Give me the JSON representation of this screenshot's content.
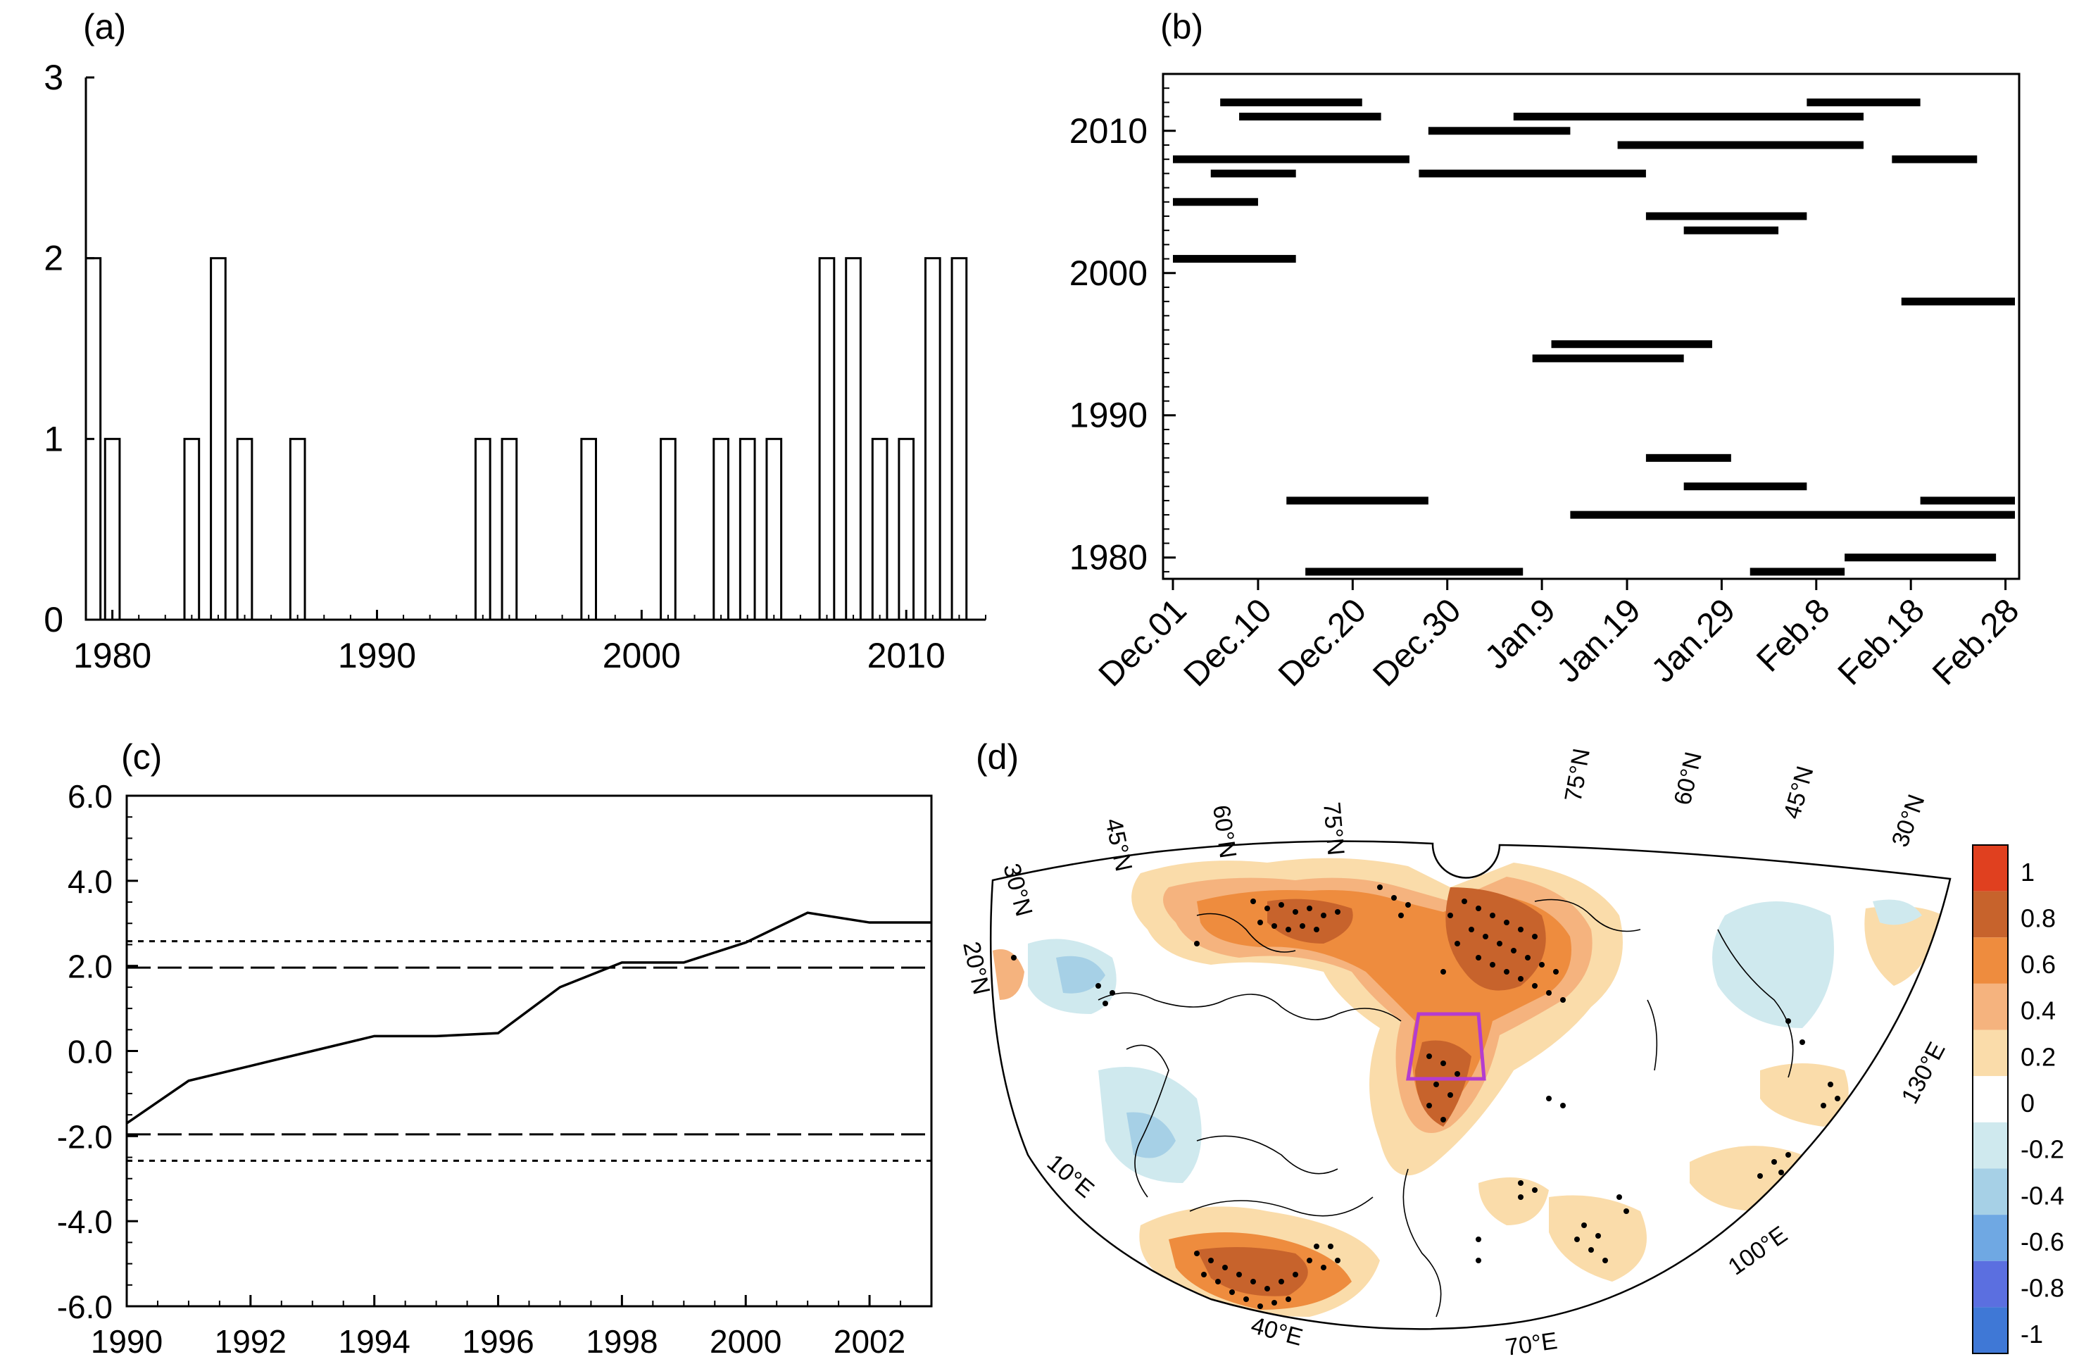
{
  "panels": {
    "a": {
      "label": "(a)"
    },
    "b": {
      "label": "(b)"
    },
    "c": {
      "label": "(c)"
    },
    "d": {
      "label": "(d)"
    }
  },
  "chart_data": [
    {
      "id": "a",
      "type": "bar",
      "x": [
        1979,
        1980,
        1983,
        1984,
        1985,
        1987,
        1994,
        1995,
        1998,
        2001,
        2003,
        2004,
        2005,
        2007,
        2008,
        2009,
        2010,
        2011,
        2012
      ],
      "values": [
        2,
        1,
        1,
        2,
        1,
        1,
        1,
        1,
        1,
        1,
        1,
        1,
        1,
        2,
        2,
        1,
        1,
        2,
        2
      ],
      "xlim": [
        1979,
        2013
      ],
      "ylim": [
        0,
        3
      ],
      "xticks": [
        1980,
        1990,
        2000,
        2010
      ],
      "xtick_labels": [
        "1980",
        "1990",
        "2000",
        "2010"
      ],
      "yticks": [
        0,
        1,
        2,
        3
      ],
      "ytick_labels": [
        "0",
        "1",
        "2",
        "3"
      ],
      "grid": false
    },
    {
      "id": "b",
      "type": "bar",
      "orientation": "horizontal-range",
      "xlim": [
        0,
        89
      ],
      "ylim": [
        1978.5,
        2014
      ],
      "xticks": [
        0,
        9,
        19,
        29,
        39,
        48,
        58,
        68,
        78,
        88
      ],
      "xtick_labels": [
        "Dec.01",
        "Dec.10",
        "Dec.20",
        "Dec.30",
        "Jan.9",
        "Jan.19",
        "Jan.29",
        "Feb.8",
        "Feb.18",
        "Feb.28"
      ],
      "yticks": [
        1980,
        1990,
        2000,
        2010
      ],
      "ytick_labels": [
        "1980",
        "1990",
        "2000",
        "2010"
      ],
      "segments": [
        {
          "year": 2012,
          "start": 5,
          "end": 20
        },
        {
          "year": 2012,
          "start": 67,
          "end": 79
        },
        {
          "year": 2011,
          "start": 7,
          "end": 22
        },
        {
          "year": 2011,
          "start": 36,
          "end": 73
        },
        {
          "year": 2010,
          "start": 27,
          "end": 42
        },
        {
          "year": 2009,
          "start": 47,
          "end": 73
        },
        {
          "year": 2008,
          "start": 0,
          "end": 25
        },
        {
          "year": 2008,
          "start": 76,
          "end": 85
        },
        {
          "year": 2007,
          "start": 4,
          "end": 13
        },
        {
          "year": 2007,
          "start": 26,
          "end": 50
        },
        {
          "year": 2005,
          "start": 0,
          "end": 9
        },
        {
          "year": 2004,
          "start": 50,
          "end": 67
        },
        {
          "year": 2003,
          "start": 54,
          "end": 64
        },
        {
          "year": 2001,
          "start": 0,
          "end": 13
        },
        {
          "year": 1998,
          "start": 77,
          "end": 89
        },
        {
          "year": 1995,
          "start": 40,
          "end": 57
        },
        {
          "year": 1994,
          "start": 38,
          "end": 54
        },
        {
          "year": 1987,
          "start": 50,
          "end": 59
        },
        {
          "year": 1985,
          "start": 54,
          "end": 67
        },
        {
          "year": 1984,
          "start": 12,
          "end": 27
        },
        {
          "year": 1984,
          "start": 79,
          "end": 89
        },
        {
          "year": 1983,
          "start": 42,
          "end": 89
        },
        {
          "year": 1980,
          "start": 71,
          "end": 87
        },
        {
          "year": 1979,
          "start": 14,
          "end": 37
        },
        {
          "year": 1979,
          "start": 61,
          "end": 71
        }
      ],
      "grid": false
    },
    {
      "id": "c",
      "type": "line",
      "x": [
        1990,
        1991,
        1992,
        1993,
        1994,
        1995,
        1996,
        1997,
        1998,
        1999,
        2000,
        2001,
        2002,
        2003
      ],
      "values": [
        -1.7,
        -0.7,
        -0.35,
        0.0,
        0.35,
        0.35,
        0.42,
        1.5,
        2.08,
        2.08,
        2.55,
        3.25,
        3.02,
        3.02
      ],
      "reference_lines": [
        1.96,
        -1.96,
        2.58,
        -2.58
      ],
      "reference_styles": [
        "dashed",
        "dashed",
        "dotted",
        "dotted"
      ],
      "xlim": [
        1990,
        2003
      ],
      "ylim": [
        -6,
        6
      ],
      "xticks": [
        1990,
        1992,
        1994,
        1996,
        1998,
        2000,
        2002
      ],
      "xtick_labels": [
        "1990",
        "1992",
        "1994",
        "1996",
        "1998",
        "2000",
        "2002"
      ],
      "yticks": [
        -6,
        -4,
        -2,
        0,
        2,
        4,
        6
      ],
      "ytick_labels": [
        "-6.0",
        "-4.0",
        "-2.0",
        "0.0",
        "2.0",
        "4.0",
        "6.0"
      ],
      "grid": false
    },
    {
      "id": "d",
      "type": "heatmap",
      "projection": "polar sector",
      "lat_labels_left": [
        "30°N",
        "45°N",
        "60°N",
        "75°N"
      ],
      "lat_labels_right": [
        "75°N",
        "60°N",
        "45°N",
        "30°N"
      ],
      "lat_labels_edge": [
        "20°N"
      ],
      "lon_labels": [
        "10°E",
        "40°E",
        "70°E",
        "100°E",
        "130°E"
      ],
      "colorbar_levels": [
        "1",
        "0.8",
        "0.6",
        "0.4",
        "0.2",
        "0",
        "-0.2",
        "-0.4",
        "-0.6",
        "-0.8",
        "-1"
      ],
      "colorbar_colors": [
        "#e0401f",
        "#c7632c",
        "#ee8c3e",
        "#f5b37e",
        "#fadcaa",
        "#ffffff",
        "#cfe9ee",
        "#a6d0e6",
        "#6fa8e3",
        "#5b6fe0",
        "#3f78d6"
      ],
      "box_color": "#b43ccf",
      "significance_dots": true
    }
  ]
}
